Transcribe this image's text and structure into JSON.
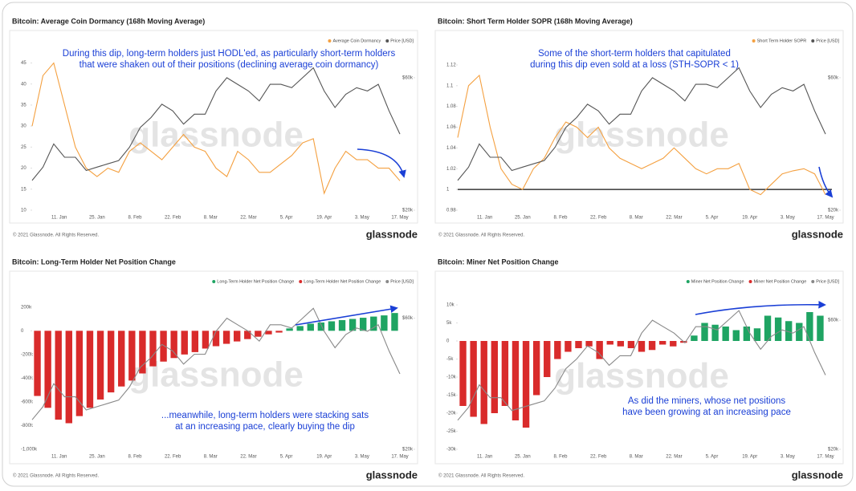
{
  "chart_data": [
    {
      "type": "line",
      "title": "Bitcoin: Average Coin Dormancy (168h Moving Average)",
      "annotation": [
        "During this dip, long-term holders just HODL'ed, as particularly short-term holders",
        "that were shaken out of their positions (declining average coin dormancy)"
      ],
      "xticks": [
        "11. Jan",
        "25. Jan",
        "8. Feb",
        "22. Feb",
        "8. Mar",
        "22. Mar",
        "5. Apr",
        "19. Apr",
        "3. May",
        "17. May"
      ],
      "ylim": [
        10,
        47
      ],
      "yticks": [
        10,
        15,
        20,
        25,
        30,
        35,
        40,
        45
      ],
      "y2lim": [
        20000,
        67000
      ],
      "y2ticks": [
        {
          "value": 20000,
          "label": "$20k"
        },
        {
          "value": 60000,
          "label": "$60k"
        }
      ],
      "series": [
        {
          "name": "Average Coin Dormancy",
          "color": "#f4a040",
          "values": [
            30,
            42,
            45,
            35,
            25,
            20,
            18,
            20,
            19,
            24,
            26,
            24,
            22,
            25,
            28,
            25,
            24,
            20,
            18,
            24,
            22,
            19,
            19,
            21,
            23,
            26,
            27,
            14,
            20,
            24,
            22,
            22,
            20,
            20,
            17
          ]
        },
        {
          "name": "Price [USD]",
          "color": "#555555",
          "axis": "y2",
          "values": [
            29000,
            33000,
            40000,
            36000,
            36000,
            32000,
            33000,
            34000,
            35000,
            39000,
            45000,
            48000,
            52000,
            50000,
            46000,
            49000,
            49000,
            56000,
            60000,
            58000,
            56000,
            53000,
            58000,
            58000,
            57000,
            60000,
            63000,
            56000,
            51000,
            55000,
            57000,
            56000,
            58000,
            50000,
            43000
          ]
        }
      ],
      "footer": "© 2021 Glassnode. All Rights Reserved.",
      "brand": "glassnode"
    },
    {
      "type": "line",
      "title": "Bitcoin: Short Term Holder SOPR (168h Moving Average)",
      "annotation": [
        "Some of the short-term holders that capitulated",
        "during this dip even sold at a loss (STH-SOPR < 1)"
      ],
      "xticks": [
        "11. Jan",
        "25. Jan",
        "8. Feb",
        "22. Feb",
        "8. Mar",
        "22. Mar",
        "5. Apr",
        "19. Apr",
        "3. May",
        "17. May"
      ],
      "ylim": [
        0.98,
        1.13
      ],
      "yticks": [
        0.98,
        1,
        1.02,
        1.04,
        1.06,
        1.08,
        1.1,
        1.12
      ],
      "reference_line": 1,
      "y2lim": [
        20000,
        67000
      ],
      "y2ticks": [
        {
          "value": 20000,
          "label": "$20k"
        },
        {
          "value": 60000,
          "label": "$60k"
        }
      ],
      "series": [
        {
          "name": "Short Term Holder SOPR",
          "color": "#f4a040",
          "values": [
            1.05,
            1.1,
            1.11,
            1.06,
            1.02,
            1.005,
            1.0,
            1.02,
            1.03,
            1.05,
            1.065,
            1.06,
            1.05,
            1.06,
            1.04,
            1.03,
            1.025,
            1.02,
            1.025,
            1.03,
            1.04,
            1.03,
            1.02,
            1.015,
            1.02,
            1.02,
            1.025,
            1.0,
            0.995,
            1.005,
            1.015,
            1.018,
            1.02,
            1.015,
            0.995
          ]
        },
        {
          "name": "Price [USD]",
          "color": "#555555",
          "axis": "y2",
          "values": [
            29000,
            33000,
            40000,
            36000,
            36000,
            32000,
            33000,
            34000,
            35000,
            39000,
            45000,
            48000,
            52000,
            50000,
            46000,
            49000,
            49000,
            56000,
            60000,
            58000,
            56000,
            53000,
            58000,
            58000,
            57000,
            60000,
            63000,
            56000,
            51000,
            55000,
            57000,
            56000,
            58000,
            50000,
            43000
          ]
        }
      ],
      "footer": "© 2021 Glassnode. All Rights Reserved.",
      "brand": "glassnode"
    },
    {
      "type": "bar",
      "title": "Bitcoin: Long-Term Holder Net Position Change",
      "annotation": [
        "...meanwhile, long-term holders were stacking sats",
        "at an increasing pace, clearly buying the dip"
      ],
      "xticks": [
        "11. Jan",
        "25. Jan",
        "8. Feb",
        "22. Feb",
        "8. Mar",
        "22. Mar",
        "5. Apr",
        "19. Apr",
        "3. May",
        "17. May"
      ],
      "ylim": [
        -1000000,
        300000
      ],
      "yticks": [
        {
          "value": 200000,
          "label": "200k"
        },
        0,
        {
          "value": -200000,
          "label": "-200k"
        },
        {
          "value": -400000,
          "label": "-400k"
        },
        {
          "value": -600000,
          "label": "-600k"
        },
        {
          "value": -800000,
          "label": "-800k"
        },
        {
          "value": -1000000,
          "label": "-1,000k"
        }
      ],
      "y2lim": [
        20000,
        67000
      ],
      "y2ticks": [
        {
          "value": 20000,
          "label": "$20k"
        },
        {
          "value": 60000,
          "label": "$60k"
        }
      ],
      "series": [
        {
          "name": "Long-Term Holder Net Position Change",
          "color": "#1fa463",
          "values": [
            null,
            null,
            null,
            null,
            null,
            null,
            null,
            null,
            null,
            null,
            null,
            null,
            null,
            null,
            null,
            null,
            null,
            null,
            null,
            null,
            null,
            null,
            null,
            null,
            20000,
            40000,
            60000,
            70000,
            80000,
            90000,
            100000,
            110000,
            120000,
            130000,
            150000
          ]
        },
        {
          "name": "Long-Term Holder Net Position Change",
          "color": "#d92b2b",
          "values": [
            -550000,
            -650000,
            -750000,
            -780000,
            -720000,
            -650000,
            -580000,
            -520000,
            -470000,
            -420000,
            -360000,
            -300000,
            -260000,
            -230000,
            -200000,
            -180000,
            -150000,
            -130000,
            -110000,
            -90000,
            -70000,
            -50000,
            -30000,
            -15000,
            null,
            null,
            null,
            null,
            null,
            null,
            null,
            null,
            null,
            null,
            null
          ]
        },
        {
          "name": "Price [USD]",
          "color": "#888888",
          "axis": "y2",
          "values": [
            29000,
            33000,
            40000,
            36000,
            36000,
            32000,
            33000,
            34000,
            35000,
            39000,
            45000,
            48000,
            52000,
            50000,
            46000,
            49000,
            49000,
            56000,
            60000,
            58000,
            56000,
            53000,
            58000,
            58000,
            57000,
            60000,
            63000,
            56000,
            51000,
            55000,
            57000,
            56000,
            58000,
            50000,
            43000
          ]
        }
      ],
      "footer": "© 2021 Glassnode. All Rights Reserved.",
      "brand": "glassnode"
    },
    {
      "type": "bar",
      "title": "Bitcoin: Miner Net Position Change",
      "annotation": [
        "As did the miners, whose net positions",
        "have been growing at an increasing pace"
      ],
      "xticks": [
        "11. Jan",
        "25. Jan",
        "8. Feb",
        "22. Feb",
        "8. Mar",
        "22. Mar",
        "5. Apr",
        "19. Apr",
        "3. May",
        "17. May"
      ],
      "ylim": [
        -30000,
        12000
      ],
      "yticks": [
        {
          "value": 10000,
          "label": "10k"
        },
        {
          "value": 5000,
          "label": "5k"
        },
        0,
        {
          "value": -5000,
          "label": "-5k"
        },
        {
          "value": -10000,
          "label": "-10k"
        },
        {
          "value": -15000,
          "label": "-15k"
        },
        {
          "value": -20000,
          "label": "-20k"
        },
        {
          "value": -25000,
          "label": "-25k"
        },
        {
          "value": -30000,
          "label": "-30k"
        }
      ],
      "y2lim": [
        20000,
        67000
      ],
      "y2ticks": [
        {
          "value": 20000,
          "label": "$20k"
        },
        {
          "value": 60000,
          "label": "$60k"
        }
      ],
      "series": [
        {
          "name": "Miner Net Position Change",
          "color": "#1fa463",
          "values": [
            null,
            null,
            null,
            null,
            null,
            null,
            null,
            null,
            null,
            null,
            null,
            null,
            null,
            null,
            null,
            null,
            null,
            null,
            null,
            null,
            null,
            null,
            1500,
            5000,
            4500,
            4000,
            3000,
            4000,
            3500,
            7000,
            6500,
            5500,
            5000,
            8000,
            7000
          ]
        },
        {
          "name": "Miner Net Position Change",
          "color": "#d92b2b",
          "values": [
            -18000,
            -21000,
            -23000,
            -20000,
            -18000,
            -22000,
            -24000,
            -15000,
            -10000,
            -5000,
            -3000,
            -2000,
            -1500,
            -5000,
            -1000,
            -1500,
            -2000,
            -3000,
            -2500,
            -1000,
            -1500,
            -500,
            null,
            null,
            null,
            null,
            null,
            null,
            null,
            null,
            null,
            null,
            null,
            null,
            null
          ]
        },
        {
          "name": "Price [USD]",
          "color": "#888888",
          "axis": "y2",
          "values": [
            29000,
            33000,
            40000,
            36000,
            36000,
            32000,
            33000,
            34000,
            35000,
            39000,
            45000,
            48000,
            52000,
            50000,
            46000,
            49000,
            49000,
            56000,
            60000,
            58000,
            56000,
            53000,
            58000,
            58000,
            57000,
            60000,
            63000,
            56000,
            51000,
            55000,
            57000,
            56000,
            58000,
            50000,
            43000
          ]
        }
      ],
      "footer": "© 2021 Glassnode. All Rights Reserved.",
      "brand": "glassnode"
    }
  ]
}
